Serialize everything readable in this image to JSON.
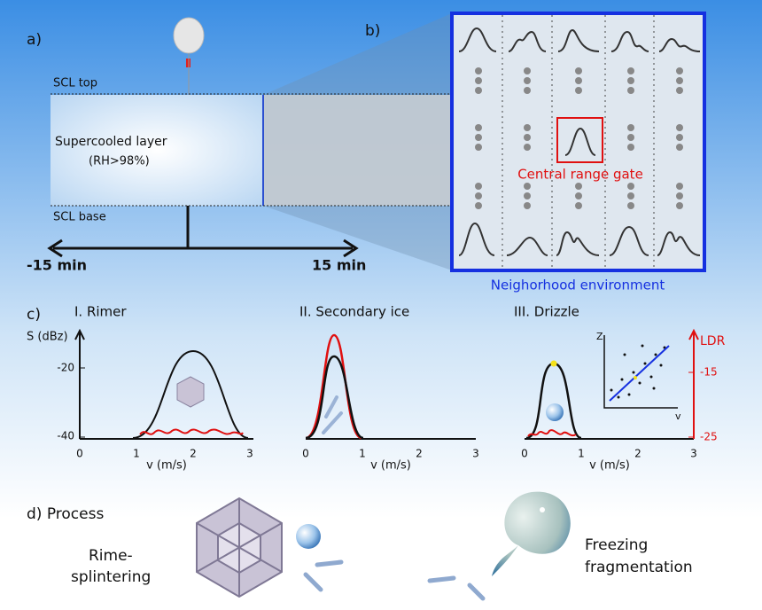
{
  "panel_a": {
    "label": "a)",
    "scl_top": "SCL top",
    "layer_name": "Supercooled layer",
    "layer_condition": "(RH>98%)",
    "scl_base": "SCL base",
    "time_left": "-15 min",
    "time_right": "15 min"
  },
  "panel_b": {
    "label": "b)",
    "center_label": "Central range gate",
    "caption": "Neighorhood environment"
  },
  "panel_c": {
    "label": "c)",
    "subpanels": [
      {
        "title": "I. Rimer",
        "y_label": "S (dBz)",
        "y_ticks": [
          "-20",
          "-40"
        ],
        "x_ticks": [
          "0",
          "1",
          "2",
          "3"
        ],
        "x_label": "v (m/s)"
      },
      {
        "title": "II. Secondary ice",
        "x_ticks": [
          "0",
          "1",
          "2",
          "3"
        ],
        "x_label": "v (m/s)"
      },
      {
        "title": "III. Drizzle",
        "x_ticks": [
          "0",
          "1",
          "2",
          "3"
        ],
        "x_label": "v (m/s)",
        "y2_label": "LDR",
        "y2_ticks": [
          "-15",
          "-25"
        ],
        "inset_y": "Z",
        "inset_x": "v"
      }
    ]
  },
  "panel_d": {
    "label": "d) Process",
    "left": [
      "Rime-",
      "splintering"
    ],
    "right": [
      "Freezing",
      "fragmentation"
    ]
  }
}
